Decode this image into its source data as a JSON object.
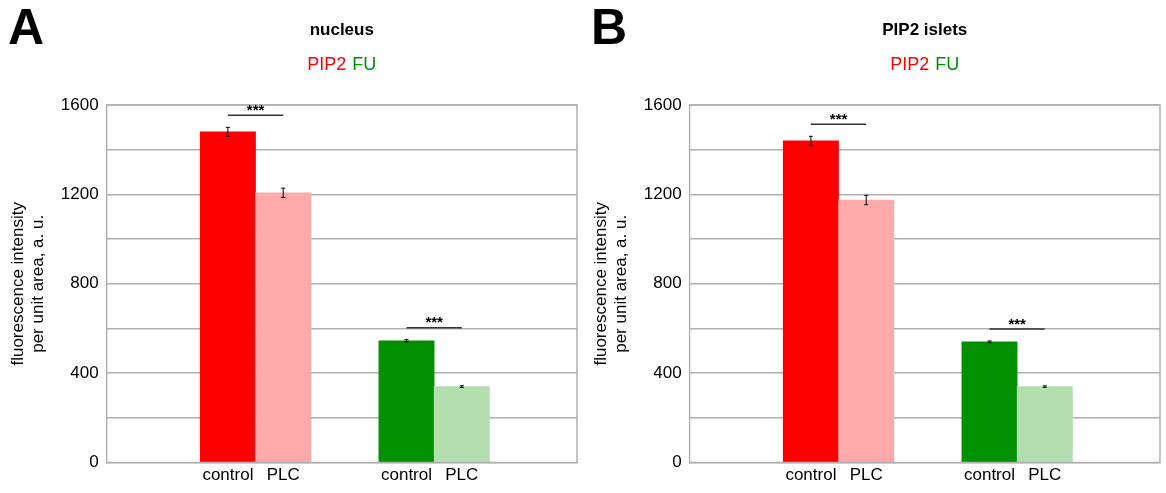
{
  "chart_data": [
    {
      "type": "bar",
      "title": "nucleus",
      "ylabel": "fluorescence intensity\nper unit area, a. u.",
      "categories": [
        "control",
        "PLC",
        "control",
        "PLC"
      ],
      "series": [
        {
          "name": "PIP2",
          "color": "#ff0000",
          "colors": [
            "#ff0000",
            "#ffaaaa",
            null,
            null
          ],
          "values": [
            1480,
            1207,
            null,
            null
          ],
          "errors": [
            20,
            21,
            null,
            null
          ]
        },
        {
          "name": "FU",
          "color": "#009000",
          "colors": [
            null,
            null,
            "#009000",
            "#b3dfb0"
          ],
          "values": [
            null,
            null,
            545,
            340
          ],
          "errors": [
            null,
            null,
            5,
            4
          ]
        }
      ],
      "ylim": [
        0,
        1600
      ],
      "yticks": [
        0,
        {
          "value": 200,
          "label": null
        },
        400,
        {
          "value": 600,
          "label": null
        },
        800,
        {
          "value": 1000,
          "label": null
        },
        1200,
        {
          "value": 1400,
          "label": null
        },
        1600
      ],
      "grid": "y",
      "legend": "top",
      "annotations": [
        "A",
        "***",
        "***"
      ]
    },
    {
      "type": "bar",
      "title": "PIP2 islets",
      "ylabel": "fluorescence intensity\nper unit area, a. u.",
      "categories": [
        "control",
        "PLC",
        "control",
        "PLC"
      ],
      "series": [
        {
          "name": "PIP2",
          "color": "#ff0000",
          "colors": [
            "#ff0000",
            "#ffaaaa",
            null,
            null
          ],
          "values": [
            1440,
            1175,
            null,
            null
          ],
          "errors": [
            20,
            21,
            null,
            null
          ]
        },
        {
          "name": "FU",
          "color": "#009000",
          "colors": [
            null,
            null,
            "#009000",
            "#b3dfb0"
          ],
          "values": [
            null,
            null,
            540,
            340
          ],
          "errors": [
            null,
            null,
            4,
            3
          ]
        }
      ],
      "ylim": [
        0,
        1600
      ],
      "yticks": [
        0,
        {
          "value": 200,
          "label": null
        },
        400,
        {
          "value": 600,
          "label": null
        },
        800,
        {
          "value": 1000,
          "label": null
        },
        1200,
        {
          "value": 1400,
          "label": null
        },
        1600
      ],
      "grid": "y",
      "legend": "top",
      "annotations": [
        "B",
        "***",
        "***"
      ]
    }
  ]
}
